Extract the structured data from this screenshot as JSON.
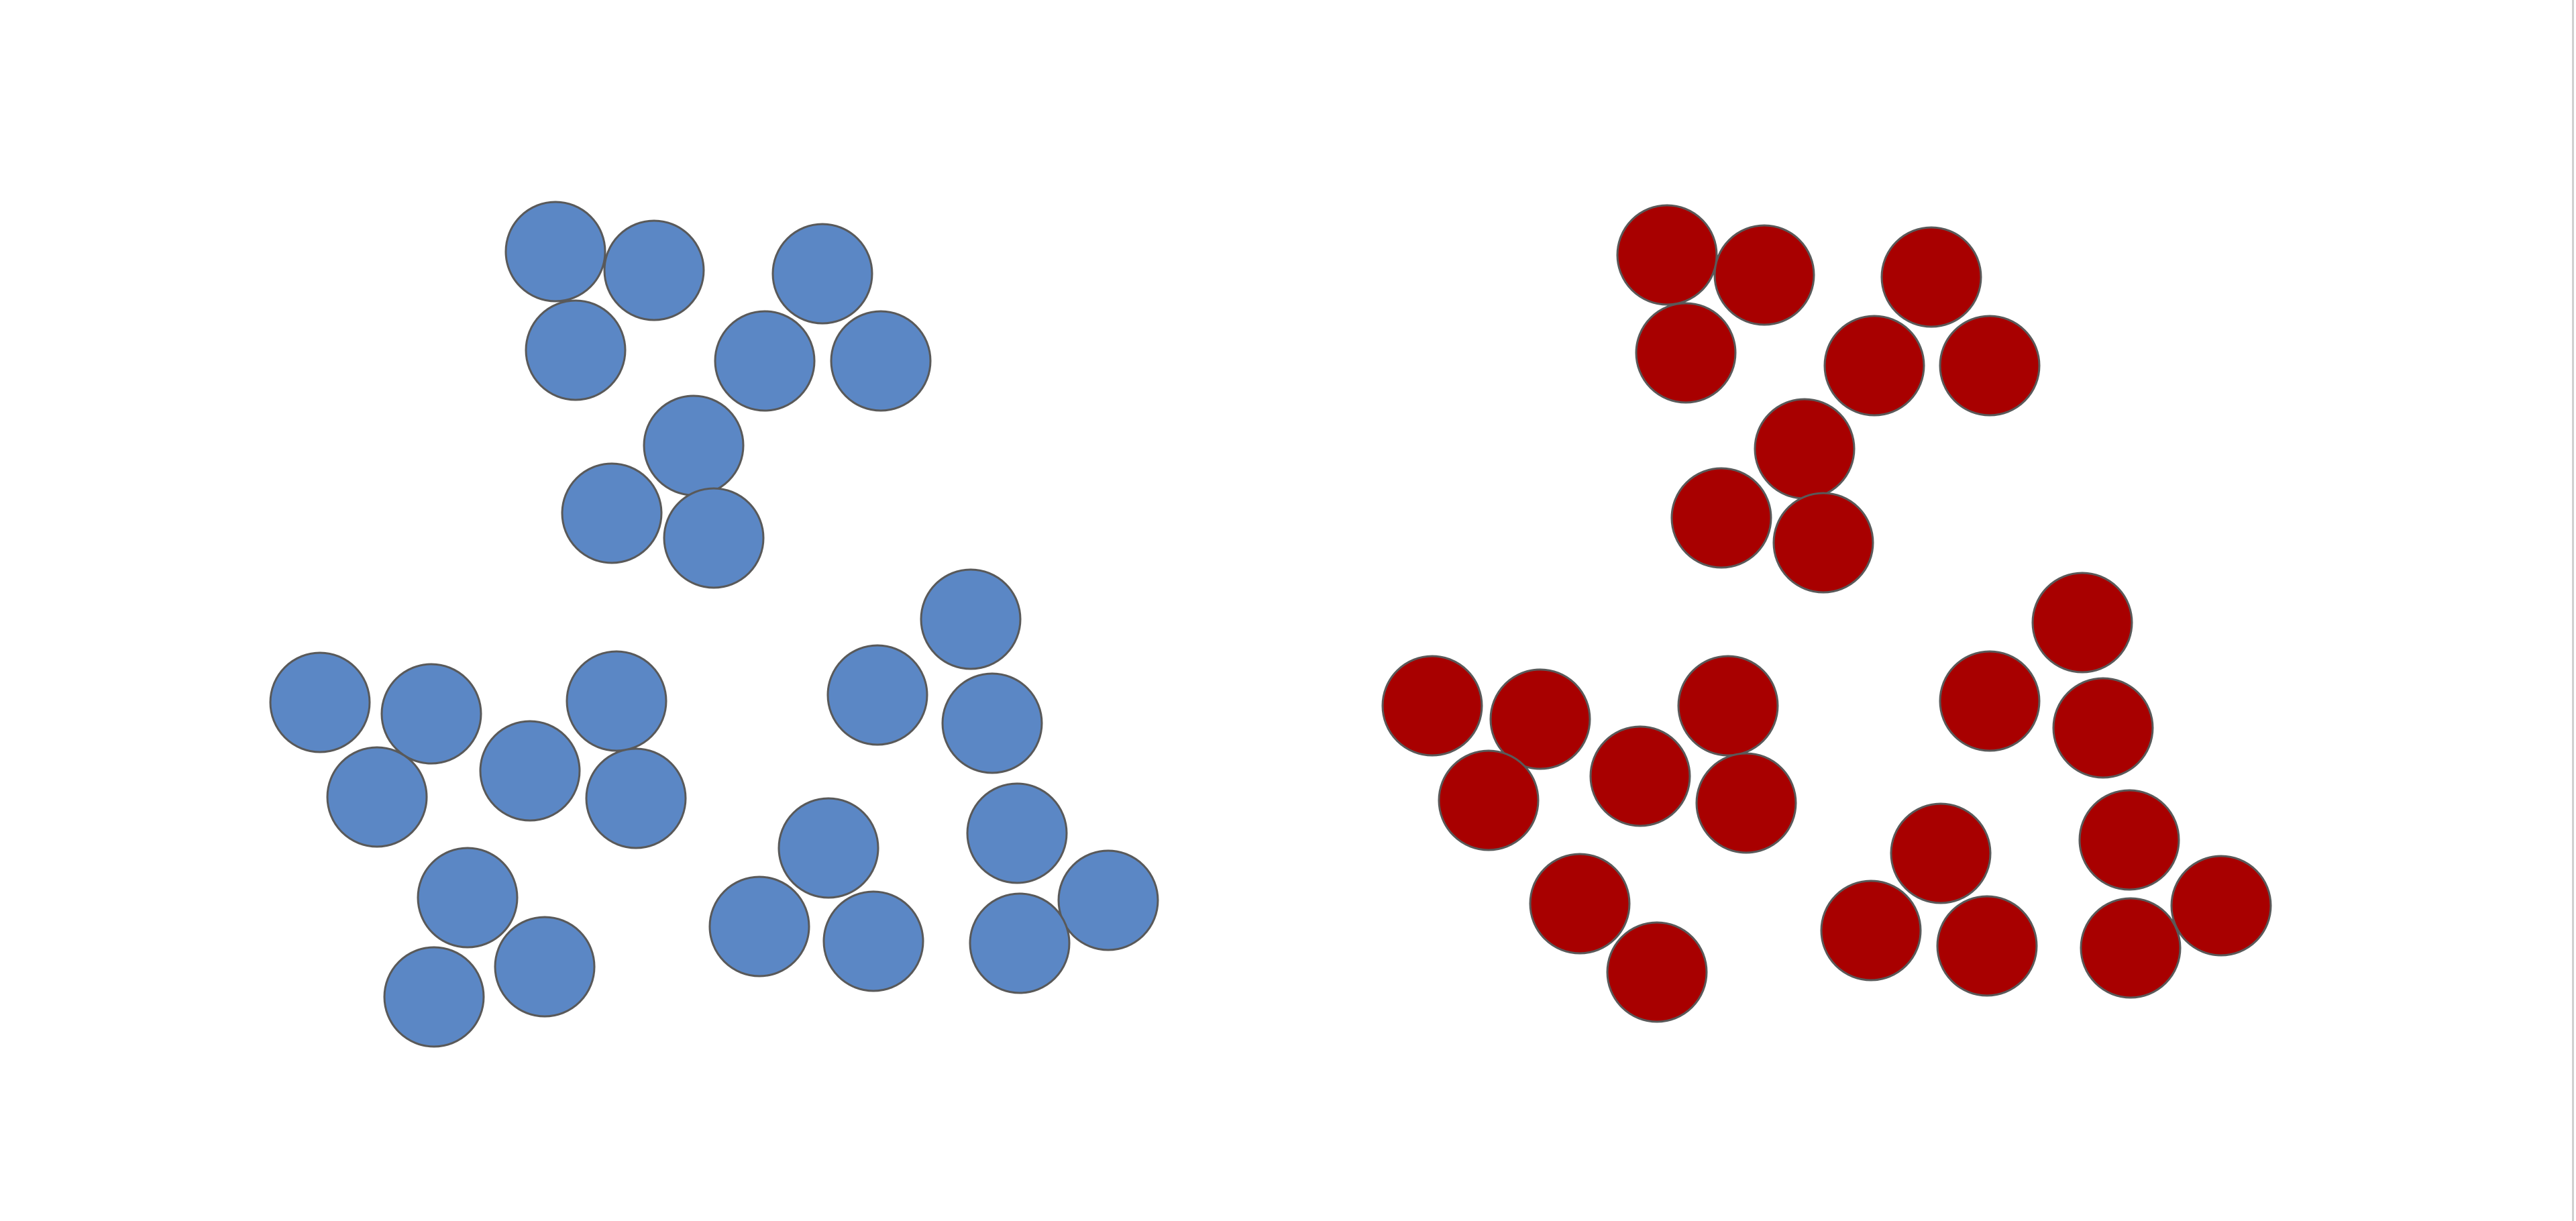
{
  "diagram": {
    "colors": {
      "blue_fill": "#5b87c5",
      "red_fill": "#a80000",
      "outline": "#595959",
      "background": "#ffffff"
    },
    "groups": [
      {
        "name": "blue-group",
        "color": "blue",
        "clusters": [
          {
            "name": "blue-top-cluster",
            "circle_count": 9
          },
          {
            "name": "blue-bottom-left-cluster",
            "circle_count": 9
          },
          {
            "name": "blue-bottom-right-cluster",
            "circle_count": 9
          }
        ]
      },
      {
        "name": "red-group",
        "color": "red",
        "clusters": [
          {
            "name": "red-top-cluster",
            "circle_count": 9
          },
          {
            "name": "red-bottom-left-cluster",
            "circle_count": 8
          },
          {
            "name": "red-bottom-right-cluster",
            "circle_count": 9
          }
        ]
      }
    ]
  }
}
